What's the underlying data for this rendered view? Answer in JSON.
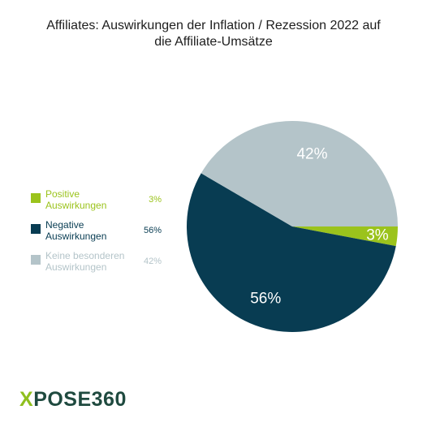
{
  "title_lines": [
    "Affiliates: Auswirkungen der Inflation / Rezession 2022 auf",
    "die Affiliate-Umsätze"
  ],
  "chart_data": {
    "type": "pie",
    "title": "Affiliates: Auswirkungen der Inflation / Rezession 2022 auf die Affiliate-Umsätze",
    "slices": [
      {
        "label_lines": [
          "Positive",
          "Auswirkungen"
        ],
        "value": 3,
        "pct_label": "3%",
        "color": "#9bc31c"
      },
      {
        "label_lines": [
          "Negative",
          "Auswirkungen"
        ],
        "value": 56,
        "pct_label": "56%",
        "color": "#083c52"
      },
      {
        "label_lines": [
          "Keine besonderen",
          "Auswirkungen"
        ],
        "value": 42,
        "pct_label": "42%",
        "color": "#b4c4c9"
      }
    ],
    "legend_position": "left"
  },
  "logo": {
    "prefix": "X",
    "rest": "POSE360"
  }
}
